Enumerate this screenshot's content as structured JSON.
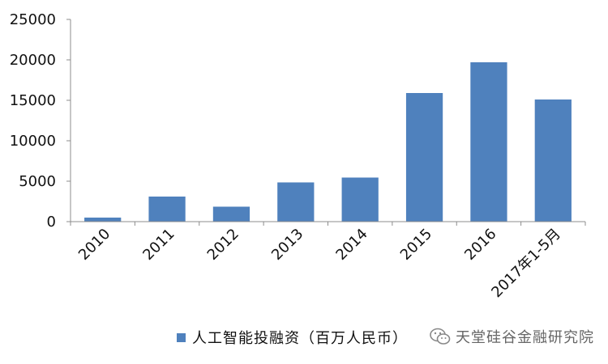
{
  "chart_data": {
    "type": "bar",
    "title": "",
    "xlabel": "",
    "ylabel": "",
    "categories": [
      "2010",
      "2011",
      "2012",
      "2013",
      "2014",
      "2015",
      "2016",
      "2017年1-5月"
    ],
    "series": [
      {
        "name": "人工智能投融资（百万人民币）",
        "values": [
          500,
          3100,
          1850,
          4850,
          5450,
          15900,
          19700,
          15100
        ],
        "color": "#4f81bd"
      }
    ],
    "ylim": [
      0,
      25000
    ],
    "yticks": [
      0,
      5000,
      10000,
      15000,
      20000,
      25000
    ],
    "grid": false,
    "legend_position": "bottom"
  },
  "legend": {
    "label": "人工智能投融资（百万人民币）",
    "color": "#4f81bd"
  },
  "watermark": {
    "icon": "wechat-icon",
    "text": "天堂硅谷金融研究院"
  }
}
